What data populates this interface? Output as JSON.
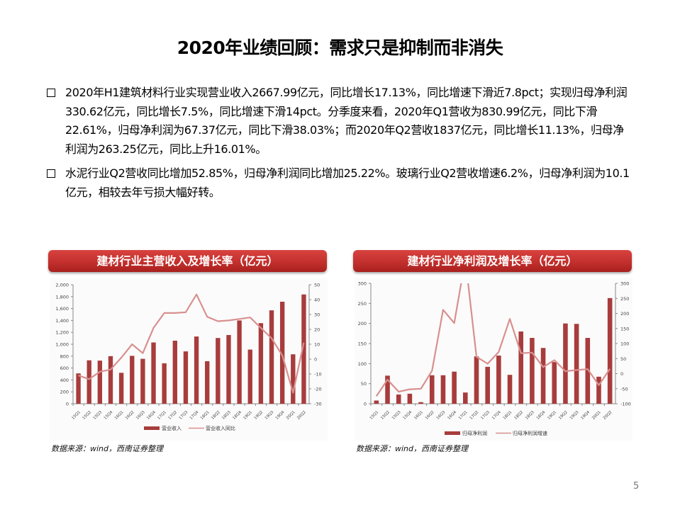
{
  "page": {
    "title": "2020年业绩回顾：需求只是抑制而非消失",
    "page_number": "5"
  },
  "bullets": [
    {
      "icon": "checkbox-square-icon",
      "text": "2020年H1建筑材料行业实现营业收入2667.99亿元，同比增长17.13%，同比增速下滑近7.8pct；实现归母净利润330.62亿元，同比增长7.5%，同比增速下滑14pct。分季度来看，2020年Q1营收为830.99亿元，同比下滑22.61%，归母净利润为67.37亿元，同比下滑38.03%；而2020年Q2营收1837亿元，同比增长11.13%，归母净利润为263.25亿元，同比上升16.01%。"
    },
    {
      "icon": "checkbox-square-icon",
      "text": "水泥行业Q2营收同比增加52.85%，归母净利润同比增加25.22%。玻璃行业Q2营收增速6.2%，归母净利润为10.1亿元，相较去年亏损大幅好转。"
    }
  ],
  "colors": {
    "bar": "#a83c3c",
    "line": "#d8908f",
    "header_red": "#c3302d",
    "axis": "#888888"
  },
  "charts": [
    {
      "header": "建材行业主营收入及增长率（亿元）",
      "source": "数据来源：wind，西南证券整理"
    },
    {
      "header": "建材行业净利润及增长率（亿元）",
      "source": "数据来源：wind，西南证券整理"
    }
  ],
  "chart_data": [
    {
      "type": "bar+line",
      "title": "建材行业主营收入及增长率（亿元）",
      "categories": [
        "15Q1",
        "15Q2",
        "15Q3",
        "15Q4",
        "16Q1",
        "16Q2",
        "16Q3",
        "16Q4",
        "17Q1",
        "17Q2",
        "17Q3",
        "17Q4",
        "18Q1",
        "18Q2",
        "18Q3",
        "18Q4",
        "19Q1",
        "19Q2",
        "19Q3",
        "19Q4",
        "20Q1",
        "20Q2"
      ],
      "series": [
        {
          "name": "营业收入",
          "type": "bar",
          "axis": "left",
          "values": [
            510,
            730,
            725,
            800,
            520,
            805,
            755,
            1030,
            680,
            1060,
            880,
            1130,
            715,
            1105,
            1155,
            1400,
            910,
            1355,
            1570,
            1715,
            831,
            1837
          ]
        },
        {
          "name": "营业收入同比",
          "type": "line",
          "axis": "right",
          "values": [
            -11,
            -13.5,
            -8.5,
            -7,
            1,
            10,
            4,
            21,
            31,
            31,
            31.5,
            43.5,
            28.5,
            25.5,
            26,
            27,
            28,
            21,
            14,
            2.5,
            -22.6,
            11.1
          ]
        }
      ],
      "y_left": {
        "min": 0,
        "max": 2000,
        "step": 200,
        "ticks": [
          "0",
          "200",
          "400",
          "600",
          "800",
          "1,000",
          "1,200",
          "1,400",
          "1,600",
          "1,800",
          "2,000"
        ]
      },
      "y_right": {
        "min": -30,
        "max": 50,
        "step": 10,
        "ticks": [
          "-30",
          "-20",
          "-10",
          "0",
          "10",
          "20",
          "30",
          "40",
          "50"
        ]
      },
      "legend": [
        "营业收入",
        "营业收入同比"
      ],
      "legend_position": "bottom",
      "grid": false
    },
    {
      "type": "bar+line",
      "title": "建材行业净利润及增长率（亿元）",
      "categories": [
        "15Q1",
        "15Q2",
        "15Q3",
        "15Q4",
        "16Q1",
        "16Q2",
        "16Q3",
        "16Q4",
        "17Q1",
        "17Q2",
        "17Q3",
        "17Q4",
        "18Q1",
        "18Q2",
        "18Q3",
        "18Q4",
        "19Q1",
        "19Q2",
        "19Q3",
        "19Q4",
        "20Q1",
        "20Q2"
      ],
      "series": [
        {
          "name": "归母净利润",
          "type": "bar",
          "axis": "left",
          "values": [
            8,
            70,
            23,
            25,
            4,
            71,
            71,
            80,
            28,
            118,
            92,
            120,
            72,
            180,
            164,
            139,
            104,
            200,
            199,
            164,
            67.37,
            263.25
          ]
        },
        {
          "name": "归母净利润增速",
          "type": "line",
          "axis": "right",
          "values": [
            -75,
            -20,
            -60,
            -52,
            -50,
            10,
            212,
            168,
            380,
            56,
            33,
            72,
            182,
            68,
            70,
            22,
            45,
            8,
            12,
            15,
            -38,
            16
          ]
        }
      ],
      "y_left": {
        "min": 0,
        "max": 300,
        "step": 50,
        "ticks": [
          "0",
          "50",
          "100",
          "150",
          "200",
          "250",
          "300"
        ]
      },
      "y_right": {
        "min": -100,
        "max": 300,
        "step": 50,
        "ticks": [
          "-100",
          "-50",
          "0",
          "50",
          "100",
          "150",
          "200",
          "250",
          "300"
        ]
      },
      "legend": [
        "归母净利润",
        "归母净利润增速"
      ],
      "legend_position": "bottom",
      "grid": false
    }
  ]
}
